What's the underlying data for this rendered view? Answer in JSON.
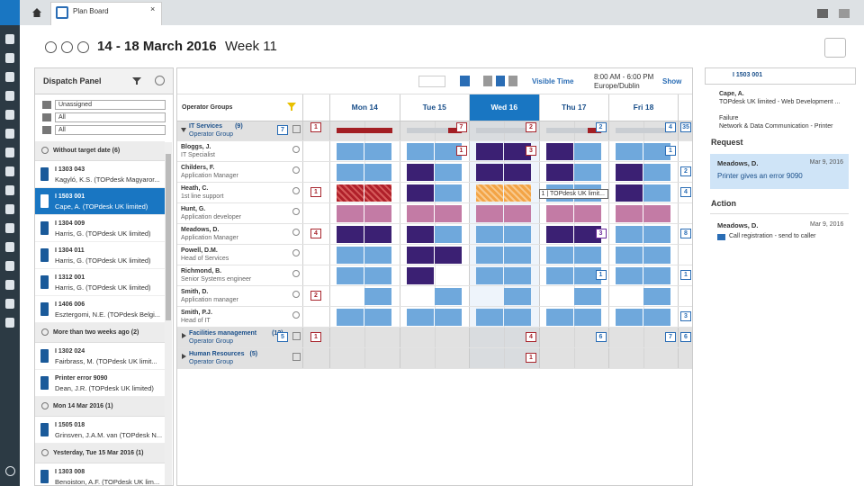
{
  "tab": "Plan Board",
  "header": {
    "title": "14 - 18 March 2016",
    "week": "Week 11"
  },
  "dispatch": {
    "title": "Dispatch Panel",
    "filters": [
      "Unassigned",
      "All",
      "All"
    ],
    "groups": [
      {
        "label": "Without target date (6)",
        "items": [
          {
            "id": "I 1303 043",
            "text": "Kagyló, K.S. (TOPdesk Magyaror..."
          },
          {
            "id": "I 1503 001",
            "text": "Cape, A. (TOPdesk UK limited)"
          },
          {
            "id": "I 1304 009",
            "text": "Harris, G. (TOPdesk UK limited)"
          },
          {
            "id": "I 1304 011",
            "text": "Harris, G. (TOPdesk UK limited)"
          },
          {
            "id": "I 1312 001",
            "text": "Harris, G. (TOPdesk UK limited)"
          },
          {
            "id": "I 1406 006",
            "text": "Esztergomi, N.E. (TOPdesk Belgi..."
          }
        ]
      },
      {
        "label": "More than two weeks ago (2)",
        "items": [
          {
            "id": "I 1302 024",
            "text": "Fairbrass, M. (TOPdesk UK limit..."
          },
          {
            "id": "Printer error 9090",
            "text": "Dean, J.R. (TOPdesk UK limited)"
          }
        ]
      },
      {
        "label": "Mon 14 Mar 2016 (1)",
        "items": [
          {
            "id": "I 1505 018",
            "text": "Grinsven, J.A.M. van (TOPdesk N..."
          }
        ]
      },
      {
        "label": "Yesterday, Tue 15 Mar 2016 (1)",
        "items": [
          {
            "id": "I 1303 008",
            "text": "Benoiston, A.F. (TOPdesk UK lim..."
          }
        ]
      }
    ]
  },
  "toolbar": {
    "visible_time": "Visible Time",
    "time": "8:00 AM - 6:00 PM",
    "timezone": "Europe/Dublin",
    "show": "Show"
  },
  "board": {
    "groups_label": "Operator Groups",
    "days": [
      "Mon 14",
      "Tue 15",
      "Wed 16",
      "Thu 17",
      "Fri 18"
    ],
    "tooltip": "1 | TOPdesk UK limit...",
    "rows": [
      {
        "name": "IT Services",
        "count": "(9)",
        "role": "Operator Group",
        "group": true,
        "side": {
          "n": 7,
          "color": "#2a6db5"
        },
        "cells": [
          {
            "n": 1,
            "color": "#a8262e"
          },
          {
            "n": 7,
            "color": "#a8262e"
          },
          {
            "n": 2,
            "color": "#a8262e"
          },
          {
            "n": 2,
            "color": "#2a6db5"
          },
          {
            "n": 4,
            "color": "#2a6db5"
          },
          {
            "n": 1,
            "color": "#2a6db5"
          },
          {
            "n": 35,
            "color": "#2a6db5"
          }
        ]
      },
      {
        "name": "Bloggs, J.",
        "role": "IT Specialist",
        "cells": [
          null,
          {
            "n": 1,
            "color": "#a8262e"
          },
          {
            "n": 3,
            "color": "#a8262e"
          },
          null,
          {
            "n": 1,
            "color": "#2a6db5"
          },
          {
            "n": 1,
            "color": "#2a6db5"
          },
          null
        ]
      },
      {
        "name": "Childers, F.",
        "role": "Application Manager",
        "cells": [
          null,
          null,
          null,
          null,
          null,
          {
            "n": 1,
            "color": "#2a6db5"
          },
          {
            "n": 2,
            "color": "#2a6db5"
          }
        ]
      },
      {
        "name": "Heath, C.",
        "role": "1st line support",
        "cells": [
          {
            "n": 1,
            "color": "#a8262e"
          },
          null,
          null,
          null,
          null,
          null,
          {
            "n": 4,
            "color": "#2a6db5"
          }
        ]
      },
      {
        "name": "Hunt, G.",
        "role": "Application developer",
        "cells": [
          null,
          null,
          null,
          null,
          null,
          null,
          null
        ]
      },
      {
        "name": "Meadows, D.",
        "role": "Application Manager",
        "cells": [
          {
            "n": 4,
            "color": "#a8262e"
          },
          null,
          null,
          {
            "n": 3,
            "color": "#6a2a9a"
          },
          null,
          null,
          {
            "n": 8,
            "color": "#2a6db5"
          }
        ]
      },
      {
        "name": "Powell, D.M.",
        "role": "Head of Services",
        "cells": [
          null,
          null,
          null,
          null,
          null,
          {
            "n": 1,
            "color": "#2a6db5"
          },
          null
        ]
      },
      {
        "name": "Richmond, B.",
        "role": "Senior Systems engineer",
        "cells": [
          null,
          null,
          null,
          {
            "n": 1,
            "color": "#2a6db5"
          },
          null,
          {
            "n": 1,
            "color": "#2a6db5"
          },
          {
            "n": 1,
            "color": "#2a6db5"
          }
        ]
      },
      {
        "name": "Smith, D.",
        "role": "Application manager",
        "cells": [
          {
            "n": 2,
            "color": "#a8262e"
          },
          null,
          null,
          null,
          null,
          null,
          null
        ]
      },
      {
        "name": "Smith, P.J.",
        "role": "Head of IT",
        "cells": [
          null,
          null,
          null,
          null,
          null,
          null,
          {
            "n": 3,
            "color": "#2a6db5"
          }
        ]
      },
      {
        "name": "Facilities management",
        "count": "(12)",
        "role": "Operator Group",
        "group": true,
        "side": {
          "n": 5,
          "color": "#2a6db5"
        },
        "cells": [
          {
            "n": 1,
            "color": "#a8262e"
          },
          null,
          {
            "n": 4,
            "color": "#a8262e"
          },
          {
            "n": 6,
            "color": "#2a6db5"
          },
          {
            "n": 7,
            "color": "#2a6db5"
          },
          {
            "n": 3,
            "color": "#2a6db5"
          },
          {
            "n": 6,
            "color": "#2a6db5"
          }
        ]
      },
      {
        "name": "Human Resources",
        "count": "(5)",
        "role": "Operator Group",
        "group": true,
        "cells": [
          null,
          null,
          {
            "n": 1,
            "color": "#a8262e"
          },
          null,
          null,
          null,
          null
        ]
      }
    ]
  },
  "detail": {
    "id": "I 1503 001",
    "caller": "Cape, A.",
    "org": "TOPdesk UK limited - Web Development ...",
    "category": "Failure",
    "subcategory": "Network & Data Communication  - Printer",
    "request_label": "Request",
    "request_by": "Meadows, D.",
    "request_date": "Mar 9, 2016",
    "request_text": "Printer gives an error 9090",
    "action_label": "Action",
    "action_by": "Meadows, D.",
    "action_date": "Mar 9, 2016",
    "action_text": "Call registration - send to caller"
  }
}
